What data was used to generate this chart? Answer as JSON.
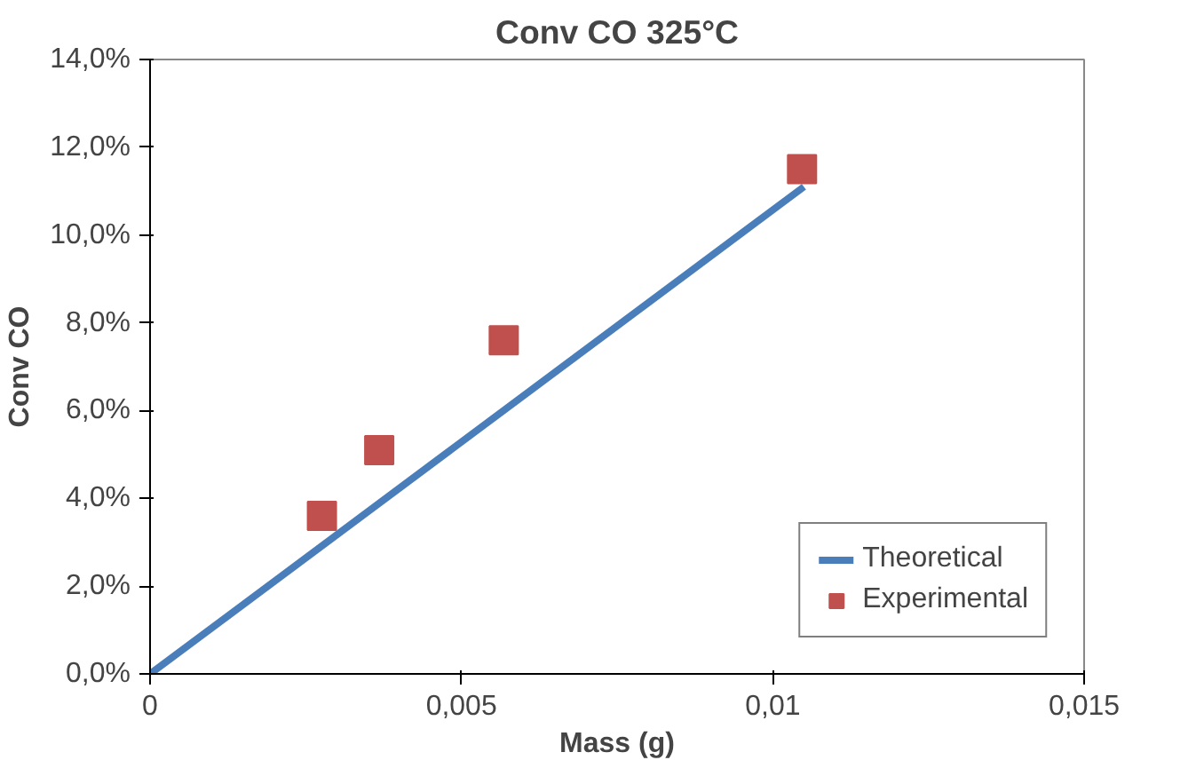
{
  "chart_data": {
    "type": "scatter",
    "title": "Conv CO 325°C",
    "xlabel": "Mass (g)",
    "ylabel": "Conv CO",
    "xlim": [
      0,
      0.015
    ],
    "xticks": [
      0,
      {
        "value": 0.005,
        "label": "0,005"
      },
      {
        "value": 0.01,
        "label": "0,01"
      },
      {
        "value": 0.015,
        "label": "0,015"
      }
    ],
    "ylim": [
      0,
      14
    ],
    "yticks": [
      {
        "value": 0,
        "label": "0,0%"
      },
      {
        "value": 2,
        "label": "2,0%"
      },
      {
        "value": 4,
        "label": "4,0%"
      },
      {
        "value": 6,
        "label": "6,0%"
      },
      {
        "value": 8,
        "label": "8,0%"
      },
      {
        "value": 10,
        "label": "10,0%"
      },
      {
        "value": 12,
        "label": "12,0%"
      },
      {
        "value": 14,
        "label": "14,0%"
      }
    ],
    "grid": false,
    "legend": "bottom right",
    "series": [
      {
        "name": "Theoretical",
        "type": "line",
        "color": "#4a7ebb",
        "x": [
          0,
          0.0105
        ],
        "values": [
          0,
          11.1
        ],
        "line_style": "solid"
      },
      {
        "name": "Experimental",
        "color": "#c0504d",
        "marker": "square",
        "x": [
          0.00276,
          0.00368,
          0.00568,
          0.01047
        ],
        "values": [
          3.6,
          5.1,
          7.6,
          11.5
        ]
      }
    ]
  }
}
